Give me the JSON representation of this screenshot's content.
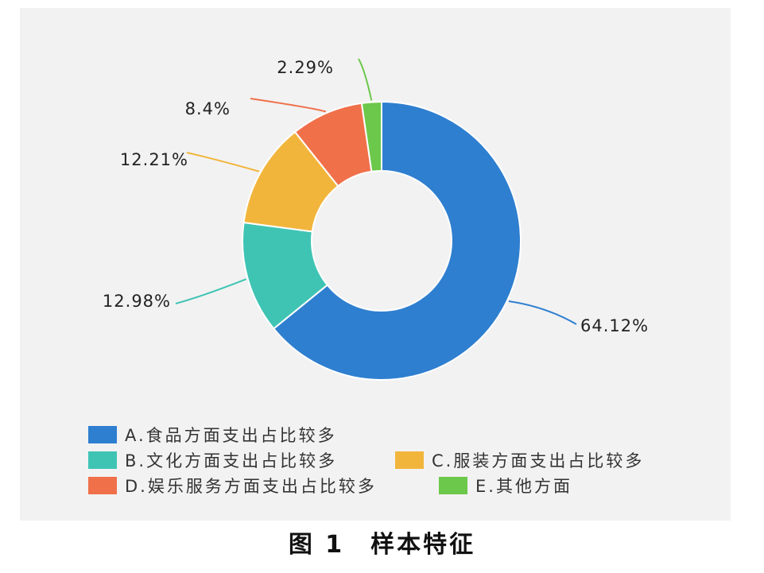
{
  "chart_data": {
    "type": "pie",
    "subtype": "donut",
    "slices": [
      {
        "key": "A",
        "legend": "A.食品方面支出占比较多",
        "value": 64.12,
        "label": "64.12%",
        "color": "#2f7fd0"
      },
      {
        "key": "B",
        "legend": "B.文化方面支出占比较多",
        "value": 12.98,
        "label": "12.98%",
        "color": "#3fc4b4"
      },
      {
        "key": "C",
        "legend": "C.服装方面支出占比较多",
        "value": 12.21,
        "label": "12.21%",
        "color": "#f2b53c"
      },
      {
        "key": "D",
        "legend": "D.娱乐服务方面支出占比较多",
        "value": 8.4,
        "label": "8.4%",
        "color": "#f0704a"
      },
      {
        "key": "E",
        "legend": "E.其他方面",
        "value": 2.29,
        "label": "2.29%",
        "color": "#6cc84a"
      }
    ],
    "legend_position": "bottom"
  },
  "caption": "图 1　样本特征"
}
